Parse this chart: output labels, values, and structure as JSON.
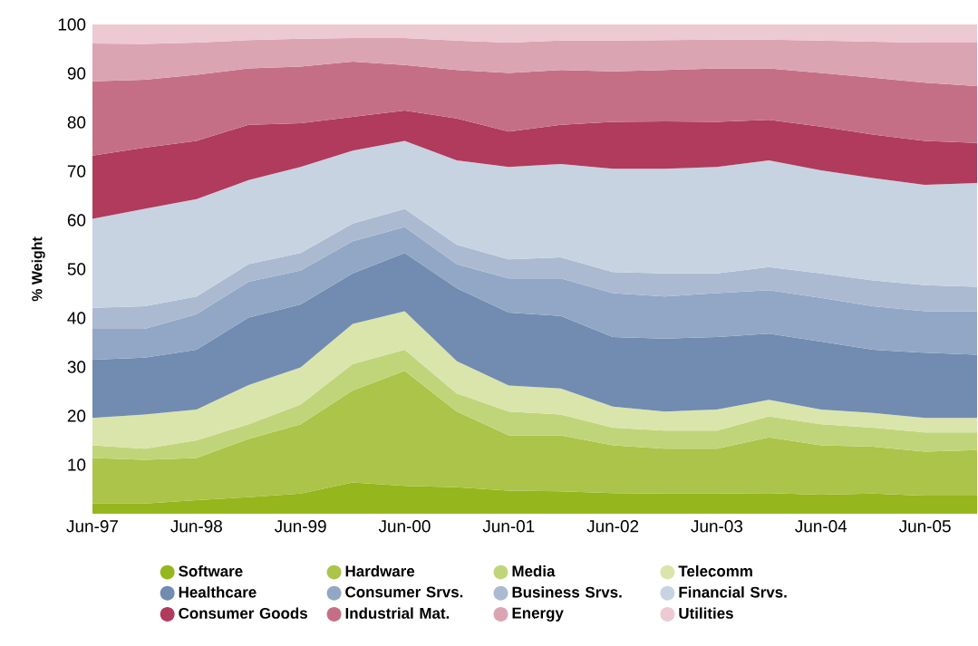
{
  "chart_data": {
    "type": "area",
    "stacked": true,
    "ylabel": "% Weight",
    "categories": [
      "Jun-97",
      null,
      "Jun-98",
      null,
      "Jun-99",
      null,
      "Jun-00",
      null,
      "Jun-01",
      null,
      "Jun-02",
      null,
      "Jun-03",
      null,
      "Jun-04",
      null,
      "Jun-05",
      null
    ],
    "ylim": [
      0,
      100
    ],
    "yticks": [
      10,
      20,
      30,
      40,
      50,
      60,
      70,
      80,
      90,
      100
    ],
    "legend": "bottom",
    "grid": false,
    "series": [
      {
        "name": "Software",
        "color": "#95b61c",
        "values": [
          2.1,
          2.1,
          2.8,
          3.4,
          4.1,
          6.4,
          5.7,
          5.4,
          4.7,
          4.6,
          4.2,
          4.1,
          4.1,
          4.2,
          3.9,
          4.1,
          3.7,
          3.7
        ]
      },
      {
        "name": "Hardware",
        "color": "#abc449",
        "values": [
          9.3,
          8.9,
          8.6,
          11.9,
          14.2,
          18.8,
          23.5,
          15.5,
          11.3,
          11.4,
          9.8,
          9.2,
          9.2,
          11.4,
          10.1,
          9.6,
          9.0,
          9.3
        ]
      },
      {
        "name": "Media",
        "color": "#c0d579",
        "values": [
          2.6,
          2.3,
          3.6,
          3.0,
          4.0,
          5.4,
          4.3,
          3.7,
          4.9,
          4.3,
          3.6,
          3.7,
          3.7,
          4.3,
          4.3,
          3.9,
          3.9,
          3.6
        ]
      },
      {
        "name": "Telecomm",
        "color": "#dae5ac",
        "values": [
          5.6,
          7.0,
          6.3,
          8.0,
          7.6,
          8.2,
          7.9,
          6.6,
          5.3,
          5.3,
          4.3,
          3.9,
          4.3,
          3.4,
          3.0,
          3.0,
          3.0,
          3.0
        ]
      },
      {
        "name": "Healthcare",
        "color": "#718bb1",
        "values": [
          11.9,
          11.6,
          12.2,
          13.8,
          12.9,
          10.3,
          11.9,
          14.9,
          14.9,
          14.8,
          14.2,
          14.9,
          14.8,
          13.5,
          13.9,
          12.9,
          13.3,
          12.9
        ]
      },
      {
        "name": "Consumer Srvs.",
        "color": "#91a7c5",
        "values": [
          6.3,
          5.9,
          7.3,
          7.3,
          6.9,
          6.6,
          5.3,
          4.9,
          7.0,
          7.7,
          9.0,
          8.6,
          9.0,
          8.9,
          8.9,
          8.9,
          8.5,
          8.9
        ]
      },
      {
        "name": "Business Srvs.",
        "color": "#abbad1",
        "values": [
          4.3,
          4.6,
          3.6,
          3.6,
          3.6,
          3.6,
          3.7,
          4.0,
          3.9,
          4.3,
          4.3,
          4.7,
          4.0,
          4.7,
          5.0,
          5.3,
          5.3,
          5.0
        ]
      },
      {
        "name": "Financial Srvs.",
        "color": "#c8d3e2",
        "values": [
          18.2,
          19.9,
          19.9,
          17.2,
          17.6,
          14.9,
          13.9,
          17.2,
          18.9,
          19.1,
          21.1,
          21.4,
          21.8,
          21.8,
          21.1,
          20.9,
          20.5,
          21.2
        ]
      },
      {
        "name": "Consumer Goods",
        "color": "#b03b5c",
        "values": [
          12.9,
          12.5,
          11.9,
          11.3,
          8.9,
          6.9,
          6.2,
          8.6,
          7.2,
          8.0,
          9.6,
          9.7,
          9.2,
          8.3,
          8.9,
          8.9,
          9.0,
          8.2
        ]
      },
      {
        "name": "Industrial Mat.",
        "color": "#c56f87",
        "values": [
          15.2,
          13.9,
          13.5,
          11.5,
          11.6,
          11.3,
          9.3,
          9.9,
          12.0,
          11.2,
          10.3,
          10.5,
          10.9,
          10.5,
          11.0,
          11.6,
          11.9,
          11.6
        ]
      },
      {
        "name": "Energy",
        "color": "#dba4b2",
        "values": [
          7.7,
          7.3,
          6.6,
          5.8,
          5.7,
          4.8,
          5.5,
          6.0,
          6.2,
          6.0,
          6.3,
          6.1,
          5.9,
          5.9,
          6.6,
          7.4,
          8.2,
          8.9
        ]
      },
      {
        "name": "Utilities",
        "color": "#ecc9d3",
        "values": [
          3.9,
          4.0,
          3.7,
          3.2,
          2.9,
          2.8,
          2.8,
          3.3,
          3.7,
          3.3,
          3.3,
          3.2,
          3.1,
          3.1,
          3.3,
          3.5,
          3.7,
          3.7
        ]
      }
    ]
  }
}
